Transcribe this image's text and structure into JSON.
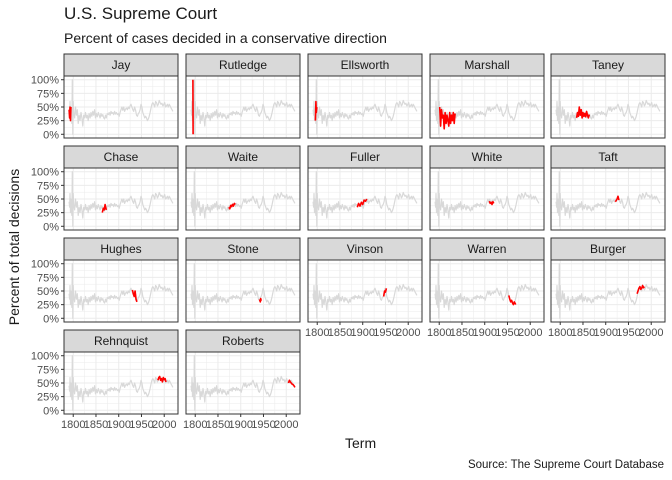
{
  "title": "U.S. Supreme Court",
  "subtitle": "Percent of cases decided in a conservative direction",
  "caption": "Source: The Supreme Court Database",
  "colors": {
    "highlight": "#ff0000",
    "background_series": "#d9d9d9",
    "strip_fill": "#d9d9d9",
    "grid": "#ebebeb"
  },
  "chart_data": {
    "type": "line",
    "title": "U.S. Supreme Court",
    "subtitle": "Percent of cases decided in a conservative direction",
    "xlabel": "Term",
    "ylabel": "Percent of total decisions",
    "xlim": [
      1791,
      2019
    ],
    "ylim": [
      0,
      1
    ],
    "x_ticks": [
      1800,
      1850,
      1900,
      1950,
      2000
    ],
    "x_tick_labels": [
      "1800",
      "1850",
      "1900",
      "1950",
      "2000"
    ],
    "y_ticks": [
      0,
      0.25,
      0.5,
      0.75,
      1.0
    ],
    "y_tick_labels": [
      "0%",
      "25%",
      "50%",
      "75%",
      "100%"
    ],
    "grid": true,
    "facets": [
      "Jay",
      "Rutledge",
      "Ellsworth",
      "Marshall",
      "Taney",
      "Chase",
      "Waite",
      "Fuller",
      "White",
      "Taft",
      "Hughes",
      "Stone",
      "Vinson",
      "Warren",
      "Burger",
      "Rehnquist",
      "Roberts"
    ],
    "background_series": {
      "x": [
        1791,
        1792,
        1793,
        1794,
        1795,
        1796,
        1797,
        1798,
        1799,
        1800,
        1801,
        1803,
        1805,
        1807,
        1809,
        1811,
        1813,
        1815,
        1817,
        1819,
        1821,
        1823,
        1825,
        1827,
        1829,
        1831,
        1833,
        1835,
        1837,
        1839,
        1841,
        1843,
        1845,
        1847,
        1849,
        1851,
        1853,
        1855,
        1857,
        1859,
        1861,
        1863,
        1865,
        1867,
        1869,
        1871,
        1873,
        1875,
        1877,
        1879,
        1881,
        1883,
        1885,
        1887,
        1889,
        1891,
        1893,
        1895,
        1897,
        1899,
        1901,
        1903,
        1905,
        1907,
        1909,
        1911,
        1913,
        1915,
        1917,
        1919,
        1921,
        1923,
        1925,
        1927,
        1929,
        1931,
        1933,
        1935,
        1937,
        1939,
        1941,
        1943,
        1945,
        1947,
        1949,
        1951,
        1953,
        1955,
        1957,
        1959,
        1961,
        1963,
        1965,
        1967,
        1969,
        1971,
        1973,
        1975,
        1977,
        1979,
        1981,
        1983,
        1985,
        1987,
        1989,
        1991,
        1993,
        1995,
        1997,
        1999,
        2001,
        2003,
        2005,
        2007,
        2009,
        2011,
        2013,
        2015,
        2017,
        2019
      ],
      "y": [
        0.45,
        0.35,
        0.6,
        0.25,
        0.5,
        0.3,
        0.2,
        1.0,
        0.0,
        0.6,
        0.4,
        0.3,
        0.5,
        0.35,
        0.45,
        0.2,
        0.35,
        0.25,
        0.4,
        0.3,
        0.15,
        0.35,
        0.3,
        0.4,
        0.3,
        0.35,
        0.25,
        0.38,
        0.3,
        0.4,
        0.33,
        0.42,
        0.35,
        0.45,
        0.3,
        0.38,
        0.32,
        0.4,
        0.35,
        0.3,
        0.38,
        0.33,
        0.36,
        0.3,
        0.28,
        0.35,
        0.3,
        0.38,
        0.36,
        0.4,
        0.35,
        0.42,
        0.38,
        0.4,
        0.36,
        0.42,
        0.37,
        0.4,
        0.36,
        0.38,
        0.33,
        0.4,
        0.45,
        0.5,
        0.44,
        0.5,
        0.42,
        0.46,
        0.48,
        0.45,
        0.5,
        0.47,
        0.52,
        0.55,
        0.5,
        0.45,
        0.42,
        0.5,
        0.44,
        0.35,
        0.33,
        0.38,
        0.4,
        0.45,
        0.55,
        0.5,
        0.4,
        0.35,
        0.3,
        0.33,
        0.3,
        0.25,
        0.28,
        0.33,
        0.4,
        0.48,
        0.55,
        0.58,
        0.55,
        0.5,
        0.6,
        0.58,
        0.52,
        0.55,
        0.62,
        0.58,
        0.55,
        0.57,
        0.52,
        0.55,
        0.58,
        0.5,
        0.52,
        0.55,
        0.5,
        0.55,
        0.52,
        0.48,
        0.45,
        0.42
      ]
    },
    "series": [
      {
        "name": "Jay",
        "x": [
          1791,
          1792,
          1793,
          1794,
          1795
        ],
        "y": [
          0.45,
          0.3,
          0.5,
          0.25,
          0.5
        ]
      },
      {
        "name": "Rutledge",
        "x": [
          1795,
          1795.4
        ],
        "y": [
          1.0,
          0.0
        ]
      },
      {
        "name": "Ellsworth",
        "x": [
          1796,
          1797,
          1798,
          1799
        ],
        "y": [
          0.25,
          0.6,
          0.4,
          0.5
        ]
      },
      {
        "name": "Marshall",
        "x": [
          1801,
          1803,
          1805,
          1807,
          1809,
          1811,
          1813,
          1815,
          1817,
          1819,
          1821,
          1823,
          1825,
          1827,
          1829,
          1831,
          1833,
          1835
        ],
        "y": [
          0.5,
          0.15,
          0.45,
          0.3,
          0.35,
          0.1,
          0.4,
          0.2,
          0.35,
          0.25,
          0.15,
          0.4,
          0.2,
          0.35,
          0.25,
          0.4,
          0.2,
          0.38
        ]
      },
      {
        "name": "Taney",
        "x": [
          1836,
          1838,
          1840,
          1842,
          1844,
          1846,
          1848,
          1850,
          1852,
          1854,
          1856,
          1858,
          1860,
          1862,
          1864
        ],
        "y": [
          0.3,
          0.4,
          0.33,
          0.5,
          0.35,
          0.45,
          0.3,
          0.4,
          0.33,
          0.38,
          0.32,
          0.42,
          0.35,
          0.3,
          0.36
        ]
      },
      {
        "name": "Chase",
        "x": [
          1864,
          1866,
          1868,
          1870,
          1872,
          1873
        ],
        "y": [
          0.25,
          0.33,
          0.3,
          0.4,
          0.32,
          0.3
        ]
      },
      {
        "name": "Waite",
        "x": [
          1874,
          1876,
          1878,
          1880,
          1882,
          1884,
          1886,
          1888
        ],
        "y": [
          0.35,
          0.32,
          0.38,
          0.36,
          0.4,
          0.37,
          0.42,
          0.4
        ]
      },
      {
        "name": "Fuller",
        "x": [
          1888,
          1891,
          1894,
          1897,
          1900,
          1903,
          1906,
          1909
        ],
        "y": [
          0.35,
          0.42,
          0.37,
          0.44,
          0.4,
          0.48,
          0.46,
          0.5
        ]
      },
      {
        "name": "White",
        "x": [
          1910,
          1912,
          1914,
          1916,
          1918,
          1920
        ],
        "y": [
          0.46,
          0.42,
          0.44,
          0.4,
          0.45,
          0.42
        ]
      },
      {
        "name": "Taft",
        "x": [
          1921,
          1923,
          1925,
          1927,
          1929
        ],
        "y": [
          0.45,
          0.47,
          0.5,
          0.55,
          0.48
        ]
      },
      {
        "name": "Hughes",
        "x": [
          1930,
          1932,
          1934,
          1936,
          1938,
          1940
        ],
        "y": [
          0.52,
          0.45,
          0.4,
          0.5,
          0.35,
          0.3
        ]
      },
      {
        "name": "Stone",
        "x": [
          1941,
          1942,
          1943,
          1944,
          1945
        ],
        "y": [
          0.35,
          0.33,
          0.3,
          0.36,
          0.32
        ]
      },
      {
        "name": "Vinson",
        "x": [
          1946,
          1947,
          1948,
          1950,
          1952
        ],
        "y": [
          0.4,
          0.45,
          0.5,
          0.48,
          0.55
        ]
      },
      {
        "name": "Warren",
        "x": [
          1953,
          1955,
          1957,
          1959,
          1961,
          1963,
          1965,
          1967,
          1968
        ],
        "y": [
          0.42,
          0.35,
          0.3,
          0.33,
          0.28,
          0.25,
          0.3,
          0.27,
          0.25
        ]
      },
      {
        "name": "Burger",
        "x": [
          1969,
          1971,
          1973,
          1975,
          1977,
          1979,
          1981,
          1983,
          1985
        ],
        "y": [
          0.45,
          0.5,
          0.55,
          0.58,
          0.53,
          0.55,
          0.6,
          0.56,
          0.58
        ]
      },
      {
        "name": "Rehnquist",
        "x": [
          1986,
          1988,
          1990,
          1992,
          1994,
          1996,
          1998,
          2000,
          2002,
          2004
        ],
        "y": [
          0.55,
          0.6,
          0.62,
          0.55,
          0.58,
          0.52,
          0.6,
          0.56,
          0.58,
          0.52
        ]
      },
      {
        "name": "Roberts",
        "x": [
          2005,
          2007,
          2009,
          2011,
          2013,
          2015,
          2017,
          2019
        ],
        "y": [
          0.5,
          0.55,
          0.52,
          0.5,
          0.48,
          0.47,
          0.45,
          0.42
        ]
      }
    ]
  }
}
